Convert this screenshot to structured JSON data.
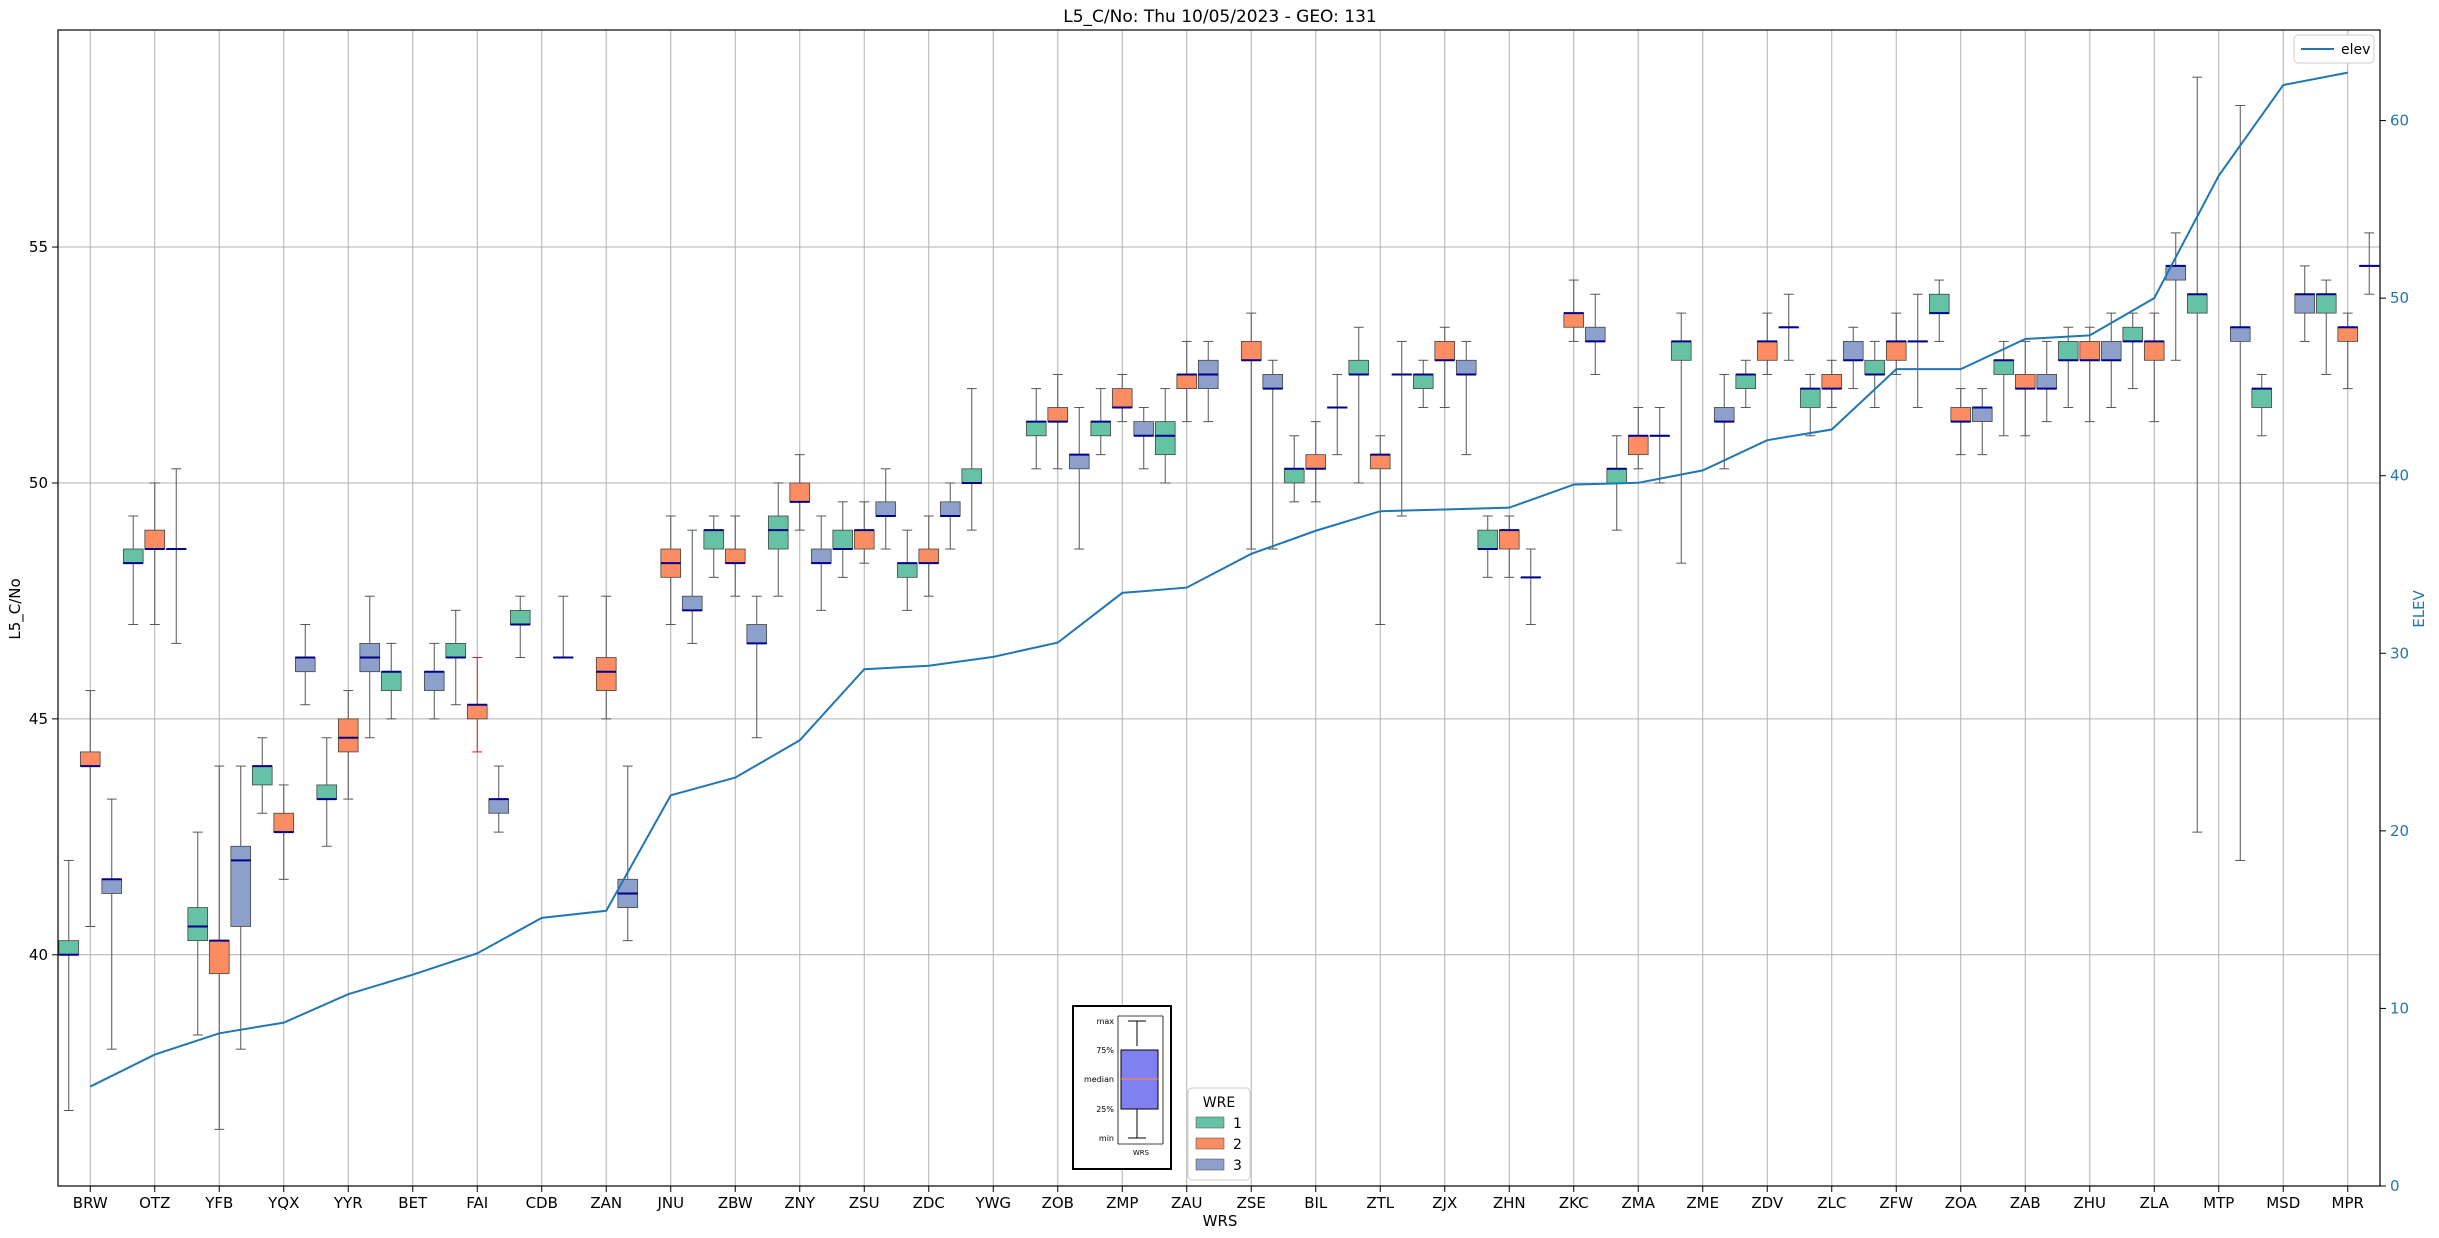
{
  "chart_data": {
    "type": "box",
    "title": "L5_C/No: Thu 10/05/2023 - GEO: 131",
    "xlabel": "WRS",
    "ylabel": "L5_C/No",
    "ylabel_right": "ELEV",
    "ylim": [
      35.1,
      59.6
    ],
    "ylim_right": [
      0,
      65.1
    ],
    "yticks": [
      40,
      45,
      50,
      55
    ],
    "yticks_right": [
      0,
      10,
      20,
      30,
      40,
      50,
      60
    ],
    "grid": true,
    "categories": [
      "BRW",
      "OTZ",
      "YFB",
      "YQX",
      "YYR",
      "BET",
      "FAI",
      "CDB",
      "ZAN",
      "JNU",
      "ZBW",
      "ZNY",
      "ZSU",
      "ZDC",
      "YWG",
      "ZOB",
      "ZMP",
      "ZAU",
      "ZSE",
      "BIL",
      "ZTL",
      "ZJX",
      "ZHN",
      "ZKC",
      "ZMA",
      "ZME",
      "ZDV",
      "ZLC",
      "ZFW",
      "ZOA",
      "ZAB",
      "ZHU",
      "ZLA",
      "MTP",
      "MSD",
      "MPR"
    ],
    "box_series": [
      {
        "name": "1",
        "color": "#66c2a5",
        "stats": [
          [
            36.7,
            40.0,
            40.0,
            40.3,
            42.0
          ],
          [
            47.0,
            48.3,
            48.3,
            48.6,
            49.3
          ],
          [
            38.3,
            40.3,
            40.6,
            41.0,
            42.6
          ],
          [
            43.0,
            43.6,
            44.0,
            44.0,
            44.6
          ],
          [
            42.3,
            43.3,
            43.3,
            43.6,
            44.6
          ],
          [
            45.0,
            45.6,
            46.0,
            46.0,
            46.6
          ],
          [
            45.3,
            46.3,
            46.3,
            46.6,
            47.3
          ],
          [
            46.3,
            47.0,
            47.0,
            47.3,
            47.6
          ],
          null,
          null,
          [
            48.0,
            48.6,
            49.0,
            49.0,
            49.3
          ],
          [
            47.6,
            48.6,
            49.0,
            49.3,
            50.0
          ],
          [
            48.0,
            48.6,
            48.6,
            49.0,
            49.6
          ],
          [
            47.3,
            48.0,
            48.3,
            48.3,
            49.0
          ],
          [
            49.0,
            50.0,
            50.0,
            50.3,
            52.0
          ],
          [
            50.3,
            51.0,
            51.3,
            51.3,
            52.0
          ],
          [
            50.6,
            51.0,
            51.3,
            51.3,
            52.0
          ],
          [
            50.0,
            50.6,
            51.0,
            51.3,
            52.0
          ],
          null,
          [
            49.6,
            50.0,
            50.3,
            50.3,
            51.0
          ],
          [
            50.0,
            52.3,
            52.3,
            52.6,
            53.3
          ],
          [
            51.6,
            52.0,
            52.3,
            52.3,
            52.6
          ],
          [
            48.0,
            48.6,
            48.6,
            49.0,
            49.3
          ],
          null,
          [
            49.0,
            50.0,
            50.3,
            50.3,
            51.0
          ],
          [
            48.3,
            52.6,
            53.0,
            53.0,
            53.6
          ],
          [
            51.6,
            52.0,
            52.3,
            52.3,
            52.6
          ],
          [
            51.0,
            51.6,
            52.0,
            52.0,
            52.3
          ],
          [
            51.6,
            52.3,
            52.3,
            52.6,
            53.0
          ],
          [
            53.0,
            53.6,
            53.6,
            54.0,
            54.3
          ],
          [
            51.0,
            52.3,
            52.6,
            52.6,
            53.0
          ],
          [
            51.6,
            52.6,
            52.6,
            53.0,
            53.3
          ],
          [
            52.0,
            53.0,
            53.0,
            53.3,
            53.6
          ],
          [
            42.6,
            53.6,
            54.0,
            54.0,
            58.6
          ],
          [
            51.0,
            51.6,
            52.0,
            52.0,
            52.3
          ],
          [
            52.3,
            53.6,
            54.0,
            54.0,
            54.3
          ]
        ]
      },
      {
        "name": "2",
        "color": "#fc8d62",
        "stats": [
          [
            40.6,
            44.0,
            44.0,
            44.3,
            45.6
          ],
          [
            47.0,
            48.6,
            48.6,
            49.0,
            50.0
          ],
          [
            36.3,
            39.6,
            40.3,
            40.3,
            44.0
          ],
          [
            41.6,
            42.6,
            42.6,
            43.0,
            43.6
          ],
          [
            43.3,
            44.3,
            44.6,
            45.0,
            45.6
          ],
          null,
          [
            44.3,
            45.0,
            45.3,
            45.3,
            46.3
          ],
          null,
          [
            45.0,
            45.6,
            46.0,
            46.3,
            47.6
          ],
          [
            47.0,
            48.0,
            48.3,
            48.6,
            49.3
          ],
          [
            47.6,
            48.3,
            48.3,
            48.6,
            49.3
          ],
          [
            49.0,
            49.6,
            49.6,
            50.0,
            50.6
          ],
          [
            48.3,
            48.6,
            49.0,
            49.0,
            49.6
          ],
          [
            47.6,
            48.3,
            48.3,
            48.6,
            49.3
          ],
          null,
          [
            50.3,
            51.3,
            51.3,
            51.6,
            52.3
          ],
          [
            51.3,
            51.6,
            51.6,
            52.0,
            52.3
          ],
          [
            51.3,
            52.0,
            52.3,
            52.3,
            53.0
          ],
          [
            48.6,
            52.6,
            52.6,
            53.0,
            53.6
          ],
          [
            49.6,
            50.3,
            50.3,
            50.6,
            51.3
          ],
          [
            47.0,
            50.3,
            50.6,
            50.6,
            51.0
          ],
          [
            51.6,
            52.6,
            52.6,
            53.0,
            53.3
          ],
          [
            48.0,
            48.6,
            49.0,
            49.0,
            49.3
          ],
          [
            53.0,
            53.3,
            53.6,
            53.6,
            54.3
          ],
          [
            50.3,
            50.6,
            51.0,
            51.0,
            51.6
          ],
          null,
          [
            52.3,
            52.6,
            53.0,
            53.0,
            53.6
          ],
          [
            51.6,
            52.0,
            52.0,
            52.3,
            52.6
          ],
          [
            52.3,
            52.6,
            53.0,
            53.0,
            53.6
          ],
          [
            50.6,
            51.3,
            51.3,
            51.6,
            52.0
          ],
          [
            51.0,
            52.0,
            52.0,
            52.3,
            53.0
          ],
          [
            51.3,
            52.6,
            52.6,
            53.0,
            53.3
          ],
          [
            51.3,
            52.6,
            53.0,
            53.0,
            53.6
          ],
          null,
          null,
          [
            52.0,
            53.0,
            53.3,
            53.3,
            53.6
          ]
        ]
      },
      {
        "name": "3",
        "color": "#8da0cb",
        "stats": [
          [
            38.0,
            41.3,
            41.6,
            41.6,
            43.3
          ],
          [
            46.6,
            48.6,
            48.6,
            48.6,
            50.3
          ],
          [
            38.0,
            40.6,
            42.0,
            42.3,
            44.0
          ],
          [
            45.3,
            46.0,
            46.3,
            46.3,
            47.0
          ],
          [
            44.6,
            46.0,
            46.3,
            46.6,
            47.6
          ],
          [
            45.0,
            45.6,
            46.0,
            46.0,
            46.6
          ],
          [
            42.6,
            43.0,
            43.3,
            43.3,
            44.0
          ],
          [
            46.3,
            46.3,
            46.3,
            46.3,
            47.6
          ],
          [
            40.3,
            41.0,
            41.3,
            41.6,
            44.0
          ],
          [
            46.6,
            47.3,
            47.3,
            47.6,
            49.0
          ],
          [
            44.6,
            46.6,
            46.6,
            47.0,
            47.6
          ],
          [
            47.3,
            48.3,
            48.3,
            48.6,
            49.3
          ],
          [
            48.6,
            49.3,
            49.3,
            49.6,
            50.3
          ],
          [
            48.6,
            49.3,
            49.3,
            49.6,
            50.0
          ],
          null,
          [
            48.6,
            50.3,
            50.6,
            50.6,
            51.6
          ],
          [
            50.3,
            51.0,
            51.0,
            51.3,
            51.6
          ],
          [
            51.3,
            52.0,
            52.3,
            52.6,
            53.0
          ],
          [
            48.6,
            52.0,
            52.0,
            52.3,
            52.6
          ],
          [
            50.6,
            51.6,
            51.6,
            51.6,
            52.3
          ],
          [
            49.3,
            52.3,
            52.3,
            52.3,
            53.0
          ],
          [
            50.6,
            52.3,
            52.3,
            52.6,
            53.0
          ],
          [
            47.0,
            48.0,
            48.0,
            48.0,
            48.6
          ],
          [
            52.3,
            53.0,
            53.0,
            53.3,
            54.0
          ],
          [
            50.0,
            51.0,
            51.0,
            51.0,
            51.6
          ],
          [
            50.3,
            51.3,
            51.3,
            51.6,
            52.3
          ],
          [
            52.6,
            53.3,
            53.3,
            53.3,
            54.0
          ],
          [
            52.0,
            52.6,
            52.6,
            53.0,
            53.3
          ],
          [
            51.6,
            53.0,
            53.0,
            53.0,
            54.0
          ],
          [
            50.6,
            51.3,
            51.6,
            51.6,
            52.0
          ],
          [
            51.3,
            52.0,
            52.0,
            52.3,
            53.0
          ],
          [
            51.6,
            52.6,
            52.6,
            53.0,
            53.6
          ],
          [
            52.6,
            54.3,
            54.6,
            54.6,
            55.3
          ],
          [
            42.0,
            53.0,
            53.3,
            53.3,
            58.0
          ],
          [
            53.0,
            53.6,
            54.0,
            54.0,
            54.6
          ],
          [
            54.0,
            54.6,
            54.6,
            54.6,
            55.3
          ]
        ]
      }
    ],
    "elev_series": {
      "name": "elev",
      "color": "#1f77b4",
      "values": [
        5.6,
        7.4,
        8.6,
        9.2,
        10.8,
        11.9,
        13.1,
        15.1,
        15.5,
        22.0,
        23.0,
        25.1,
        29.1,
        29.3,
        29.8,
        30.6,
        33.4,
        33.7,
        35.6,
        36.9,
        38.0,
        38.1,
        38.2,
        39.5,
        39.6,
        40.3,
        42.0,
        42.6,
        46.0,
        46.0,
        47.7,
        47.9,
        50.0,
        56.9,
        62.0,
        62.7
      ]
    },
    "legend_elev": {
      "position": "upper right",
      "label": "elev"
    },
    "legend_box": {
      "title": "WRE",
      "entries": [
        "1",
        "2",
        "3"
      ],
      "position": "lower center"
    },
    "key_inset": {
      "labels": [
        "max",
        "75%",
        "median",
        "25%",
        "min"
      ],
      "xlabel": "WRS",
      "fill": "#8080f0",
      "median_color": "#f08a4b"
    },
    "median_color": "#00008b",
    "outlier_whisker_color": "#e41a1c"
  }
}
